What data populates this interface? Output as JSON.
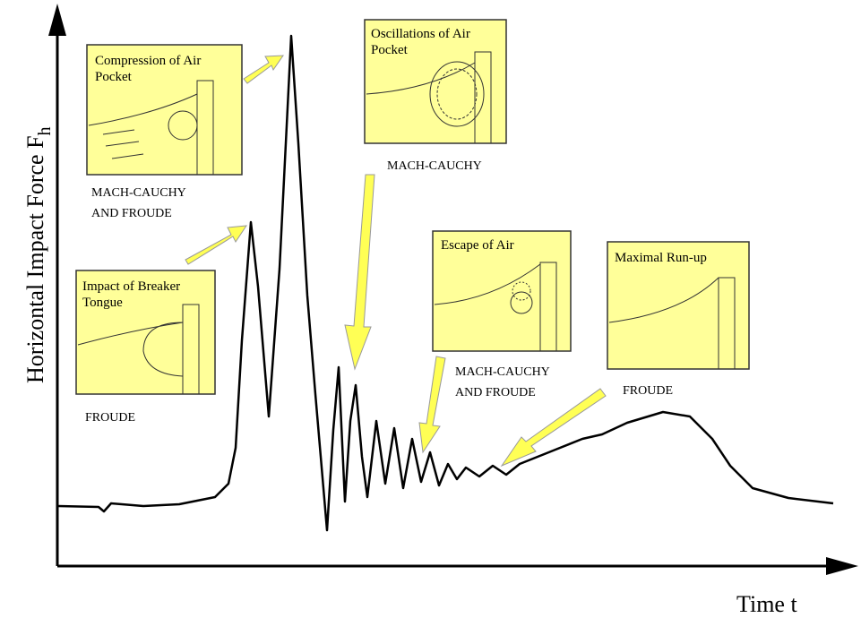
{
  "axes": {
    "y_label": "Horizontal Impact Force F",
    "y_label_sub": "h",
    "x_label": "Time t"
  },
  "panels": [
    {
      "title_lines": [
        "Impact of Breaker",
        "Tongue"
      ],
      "caption_lines": [
        "FROUDE"
      ]
    },
    {
      "title_lines": [
        "Compression of Air",
        "Pocket"
      ],
      "caption_lines": [
        "MACH-CAUCHY",
        "AND FROUDE"
      ]
    },
    {
      "title_lines": [
        "Oscillations of Air",
        "Pocket"
      ],
      "caption_lines": [
        "MACH-CAUCHY"
      ]
    },
    {
      "title_lines": [
        "Escape of Air"
      ],
      "caption_lines": [
        "MACH-CAUCHY",
        "AND FROUDE"
      ]
    },
    {
      "title_lines": [
        "Maximal Run-up"
      ],
      "caption_lines": [
        "FROUDE"
      ]
    }
  ]
}
